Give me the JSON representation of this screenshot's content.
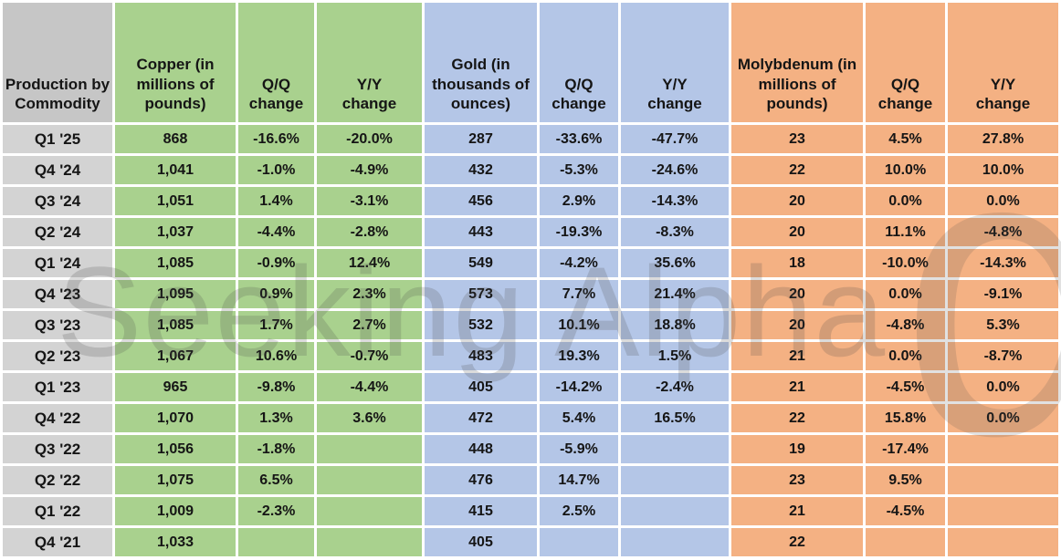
{
  "table": {
    "corner_label": "Production by Commodity",
    "groups": [
      {
        "label": "Copper (in millions of pounds)",
        "qq_label": "Q/Q change",
        "yy_label": "Y/Y change",
        "color": "#A9D18E"
      },
      {
        "label": "Gold (in thousands of ounces)",
        "qq_label": "Q/Q change",
        "yy_label": "Y/Y change",
        "color": "#B4C6E7"
      },
      {
        "label": "Molybdenum (in millions of pounds)",
        "qq_label": "Q/Q change",
        "yy_label": "Y/Y change",
        "color": "#F4B183"
      }
    ],
    "rows": [
      {
        "label": "Q1 '25",
        "values": [
          "868",
          "-16.6%",
          "-20.0%",
          "287",
          "-33.6%",
          "-47.7%",
          "23",
          "4.5%",
          "27.8%"
        ]
      },
      {
        "label": "Q4 '24",
        "values": [
          "1,041",
          "-1.0%",
          "-4.9%",
          "432",
          "-5.3%",
          "-24.6%",
          "22",
          "10.0%",
          "10.0%"
        ]
      },
      {
        "label": "Q3 '24",
        "values": [
          "1,051",
          "1.4%",
          "-3.1%",
          "456",
          "2.9%",
          "-14.3%",
          "20",
          "0.0%",
          "0.0%"
        ]
      },
      {
        "label": "Q2 '24",
        "values": [
          "1,037",
          "-4.4%",
          "-2.8%",
          "443",
          "-19.3%",
          "-8.3%",
          "20",
          "11.1%",
          "-4.8%"
        ]
      },
      {
        "label": "Q1 '24",
        "values": [
          "1,085",
          "-0.9%",
          "12.4%",
          "549",
          "-4.2%",
          "35.6%",
          "18",
          "-10.0%",
          "-14.3%"
        ]
      },
      {
        "label": "Q4 '23",
        "values": [
          "1,095",
          "0.9%",
          "2.3%",
          "573",
          "7.7%",
          "21.4%",
          "20",
          "0.0%",
          "-9.1%"
        ]
      },
      {
        "label": "Q3 '23",
        "values": [
          "1,085",
          "1.7%",
          "2.7%",
          "532",
          "10.1%",
          "18.8%",
          "20",
          "-4.8%",
          "5.3%"
        ]
      },
      {
        "label": "Q2 '23",
        "values": [
          "1,067",
          "10.6%",
          "-0.7%",
          "483",
          "19.3%",
          "1.5%",
          "21",
          "0.0%",
          "-8.7%"
        ]
      },
      {
        "label": "Q1 '23",
        "values": [
          "965",
          "-9.8%",
          "-4.4%",
          "405",
          "-14.2%",
          "-2.4%",
          "21",
          "-4.5%",
          "0.0%"
        ]
      },
      {
        "label": "Q4 '22",
        "values": [
          "1,070",
          "1.3%",
          "3.6%",
          "472",
          "5.4%",
          "16.5%",
          "22",
          "15.8%",
          "0.0%"
        ]
      },
      {
        "label": "Q3 '22",
        "values": [
          "1,056",
          "-1.8%",
          "",
          "448",
          "-5.9%",
          "",
          "19",
          "-17.4%",
          ""
        ]
      },
      {
        "label": "Q2 '22",
        "values": [
          "1,075",
          "6.5%",
          "",
          "476",
          "14.7%",
          "",
          "23",
          "9.5%",
          ""
        ]
      },
      {
        "label": "Q1 '22",
        "values": [
          "1,009",
          "-2.3%",
          "",
          "415",
          "2.5%",
          "",
          "21",
          "-4.5%",
          ""
        ]
      },
      {
        "label": "Q4 '21",
        "values": [
          "1,033",
          "",
          "",
          "405",
          "",
          "",
          "22",
          "",
          ""
        ]
      }
    ]
  },
  "watermark": {
    "text": "Seeking Alpha",
    "symbol": "α"
  },
  "colors": {
    "copper_group": "#A9D18E",
    "gold_group": "#B4C6E7",
    "molybdenum_group": "#F4B183",
    "header_gray": "#C6C6C6",
    "row_label_gray": "#D3D3D3"
  },
  "chart_data": {
    "type": "table",
    "title": "Production by Commodity",
    "columns": [
      "Production by Commodity",
      "Copper (in millions of pounds)",
      "Q/Q change",
      "Y/Y change",
      "Gold (in thousands of ounces)",
      "Q/Q change",
      "Y/Y change",
      "Molybdenum (in millions of pounds)",
      "Q/Q change",
      "Y/Y change"
    ],
    "rows": [
      [
        "Q1 '25",
        "868",
        "-16.6%",
        "-20.0%",
        "287",
        "-33.6%",
        "-47.7%",
        "23",
        "4.5%",
        "27.8%"
      ],
      [
        "Q4 '24",
        "1,041",
        "-1.0%",
        "-4.9%",
        "432",
        "-5.3%",
        "-24.6%",
        "22",
        "10.0%",
        "10.0%"
      ],
      [
        "Q3 '24",
        "1,051",
        "1.4%",
        "-3.1%",
        "456",
        "2.9%",
        "-14.3%",
        "20",
        "0.0%",
        "0.0%"
      ],
      [
        "Q2 '24",
        "1,037",
        "-4.4%",
        "-2.8%",
        "443",
        "-19.3%",
        "-8.3%",
        "20",
        "11.1%",
        "-4.8%"
      ],
      [
        "Q1 '24",
        "1,085",
        "-0.9%",
        "12.4%",
        "549",
        "-4.2%",
        "35.6%",
        "18",
        "-10.0%",
        "-14.3%"
      ],
      [
        "Q4 '23",
        "1,095",
        "0.9%",
        "2.3%",
        "573",
        "7.7%",
        "21.4%",
        "20",
        "0.0%",
        "-9.1%"
      ],
      [
        "Q3 '23",
        "1,085",
        "1.7%",
        "2.7%",
        "532",
        "10.1%",
        "18.8%",
        "20",
        "-4.8%",
        "5.3%"
      ],
      [
        "Q2 '23",
        "1,067",
        "10.6%",
        "-0.7%",
        "483",
        "19.3%",
        "1.5%",
        "21",
        "0.0%",
        "-8.7%"
      ],
      [
        "Q1 '23",
        "965",
        "-9.8%",
        "-4.4%",
        "405",
        "-14.2%",
        "-2.4%",
        "21",
        "-4.5%",
        "0.0%"
      ],
      [
        "Q4 '22",
        "1,070",
        "1.3%",
        "3.6%",
        "472",
        "5.4%",
        "16.5%",
        "22",
        "15.8%",
        "0.0%"
      ],
      [
        "Q3 '22",
        "1,056",
        "-1.8%",
        "",
        "448",
        "-5.9%",
        "",
        "19",
        "-17.4%",
        ""
      ],
      [
        "Q2 '22",
        "1,075",
        "6.5%",
        "",
        "476",
        "14.7%",
        "",
        "23",
        "9.5%",
        ""
      ],
      [
        "Q1 '22",
        "1,009",
        "-2.3%",
        "",
        "415",
        "2.5%",
        "",
        "21",
        "-4.5%",
        ""
      ],
      [
        "Q4 '21",
        "1,033",
        "",
        "",
        "405",
        "",
        "",
        "22",
        "",
        ""
      ]
    ]
  }
}
